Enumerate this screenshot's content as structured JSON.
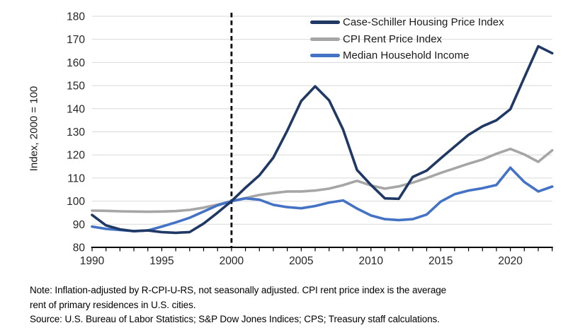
{
  "chart_data": {
    "type": "line",
    "title": "",
    "ylabel": "Index, 2000 = 100",
    "xlabel": "",
    "ylim": [
      80,
      180
    ],
    "xlim": [
      1990,
      2023
    ],
    "y_ticks": [
      80,
      90,
      100,
      110,
      120,
      130,
      140,
      150,
      160,
      170,
      180
    ],
    "x_tick_labels": [
      1990,
      1995,
      2000,
      2005,
      2010,
      2015,
      2020
    ],
    "x_minor_tick_every": 1,
    "reference_line_x": 2000,
    "grid": "horizontal",
    "legend_position": "top-right-inside",
    "x": [
      1990,
      1991,
      1992,
      1993,
      1994,
      1995,
      1996,
      1997,
      1998,
      1999,
      2000,
      2001,
      2002,
      2003,
      2004,
      2005,
      2006,
      2007,
      2008,
      2009,
      2010,
      2011,
      2012,
      2013,
      2014,
      2015,
      2016,
      2017,
      2018,
      2019,
      2020,
      2021,
      2022,
      2023
    ],
    "series": [
      {
        "name": "Case-Schiller Housing Price Index",
        "color": "#1f3864",
        "values": [
          94,
          89.5,
          87.8,
          87,
          87.3,
          86.6,
          86.3,
          86.6,
          90.3,
          95,
          100,
          105.8,
          111.2,
          118.8,
          130.5,
          143.3,
          149.7,
          143.6,
          131,
          113.5,
          107,
          101.2,
          101,
          110.5,
          113.2,
          118.5,
          123.6,
          128.7,
          132.4,
          135,
          139.8,
          153.5,
          167,
          164
        ]
      },
      {
        "name": "CPI Rent Price Index",
        "color": "#a6a6a6",
        "values": [
          95.9,
          95.8,
          95.6,
          95.5,
          95.4,
          95.5,
          95.7,
          96.2,
          97.2,
          98.5,
          100,
          101.3,
          102.7,
          103.5,
          104.2,
          104.2,
          104.6,
          105.4,
          106.9,
          108.8,
          106.8,
          105.4,
          106.4,
          108,
          110,
          112.2,
          114.2,
          116.2,
          118,
          120.5,
          122.6,
          120.2,
          117,
          122
        ]
      },
      {
        "name": "Median Household Income",
        "color": "#4472c4",
        "values": [
          89,
          88,
          87.5,
          87,
          87.3,
          89,
          90.8,
          92.8,
          95.5,
          98.2,
          100,
          101.2,
          100.6,
          98.4,
          97.4,
          96.9,
          97.9,
          99.4,
          100.3,
          96.8,
          93.8,
          92.2,
          91.8,
          92.2,
          94.2,
          99.8,
          103,
          104.6,
          105.6,
          107,
          114.5,
          108.3,
          104.2,
          106.3
        ]
      }
    ]
  },
  "style": {
    "grid_color": "#d9d9d9",
    "axis_color": "#000000",
    "tick_label_color": "#262626",
    "series_stroke_width": 3.6,
    "dashed_line_color": "#000000"
  },
  "notes": {
    "line1": "Note: Inflation-adjusted by R-CPI-U-RS, not seasonally adjusted. CPI rent price index is the average",
    "line2": "rent of primary residences in U.S. cities.",
    "source": "Source: U.S. Bureau of Labor Statistics; S&P Dow Jones Indices; CPS; Treasury staff calculations."
  }
}
